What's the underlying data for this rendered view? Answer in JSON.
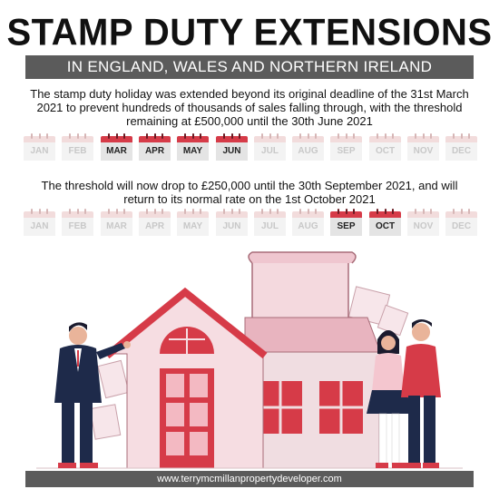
{
  "header": {
    "title": "STAMP DUTY EXTENSIONS",
    "subtitle": "IN ENGLAND, WALES AND NORTHERN IRELAND"
  },
  "paragraph1": "The stamp duty holiday was extended beyond its original deadline of the 31st March 2021 to prevent hundreds of thousands of sales falling through, with the threshold remaining at £500,000 until the 30th June 2021",
  "paragraph2": "The threshold will now drop to £250,000 until the 30th September 2021, and will return to its normal rate on the 1st October 2021",
  "calendar1": [
    {
      "label": "JAN",
      "active": false
    },
    {
      "label": "FEB",
      "active": false
    },
    {
      "label": "MAR",
      "active": true
    },
    {
      "label": "APR",
      "active": true
    },
    {
      "label": "MAY",
      "active": true
    },
    {
      "label": "JUN",
      "active": true
    },
    {
      "label": "JUL",
      "active": false
    },
    {
      "label": "AUG",
      "active": false
    },
    {
      "label": "SEP",
      "active": false
    },
    {
      "label": "OCT",
      "active": false
    },
    {
      "label": "NOV",
      "active": false
    },
    {
      "label": "DEC",
      "active": false
    }
  ],
  "calendar2": [
    {
      "label": "JAN",
      "active": false
    },
    {
      "label": "FEB",
      "active": false
    },
    {
      "label": "MAR",
      "active": false
    },
    {
      "label": "APR",
      "active": false
    },
    {
      "label": "MAY",
      "active": false
    },
    {
      "label": "JUN",
      "active": false
    },
    {
      "label": "JUL",
      "active": false
    },
    {
      "label": "AUG",
      "active": false
    },
    {
      "label": "SEP",
      "active": true
    },
    {
      "label": "OCT",
      "active": true
    },
    {
      "label": "NOV",
      "active": false
    },
    {
      "label": "DEC",
      "active": false
    }
  ],
  "footer": "www.terrymcmillanpropertydeveloper.com",
  "colors": {
    "accent_red": "#d63b48",
    "band_gray": "#5b5b5b",
    "house_pink": "#f4d9de",
    "navy": "#1e2a4a"
  }
}
